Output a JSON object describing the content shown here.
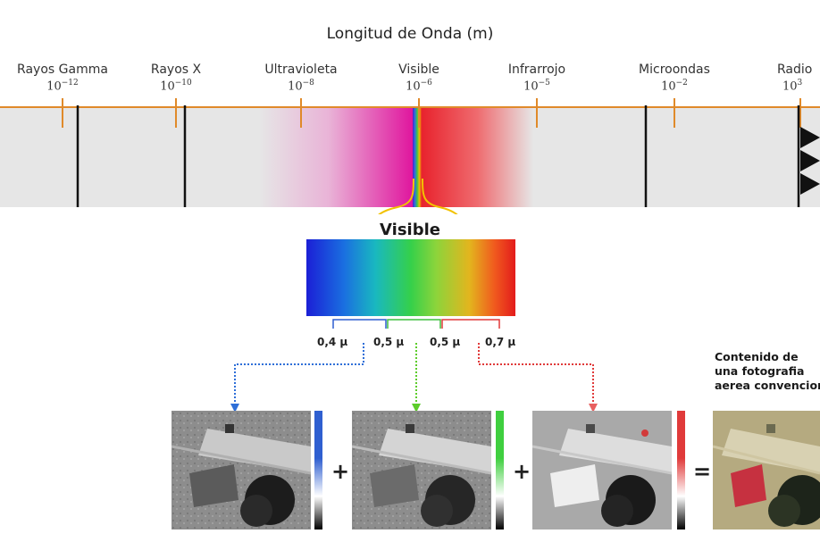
{
  "title": "Longitud de Onda (m)",
  "bands": [
    {
      "name": "Rayos Gamma",
      "base": "10",
      "exp": "−12"
    },
    {
      "name": "Rayos X",
      "base": "10",
      "exp": "−10"
    },
    {
      "name": "Ultravioleta",
      "base": "10",
      "exp": "−8"
    },
    {
      "name": "Visible",
      "base": "10",
      "exp": "−6"
    },
    {
      "name": "Infrarrojo",
      "base": "10",
      "exp": "−5"
    },
    {
      "name": "Microondas",
      "base": "10",
      "exp": "−2"
    },
    {
      "name": "Radio",
      "base": "10",
      "exp": "3"
    }
  ],
  "visible_heading": "Visible",
  "wavelength_labels": [
    "0,4 μ",
    "0,5 μ",
    "0,5 μ",
    "0,7 μ"
  ],
  "operators": [
    "+",
    "+",
    "="
  ],
  "result_note": [
    "Contenido de",
    "una fotografia",
    "aerea convencional"
  ],
  "colors": {
    "axis": "#e08a2a",
    "band_bg": "#e6e6e6",
    "blue_channel": "#2f5fd0",
    "green_channel": "#3fbf3f",
    "red_channel": "#e03a3a",
    "spectrum_bracket": "#f2c200"
  }
}
